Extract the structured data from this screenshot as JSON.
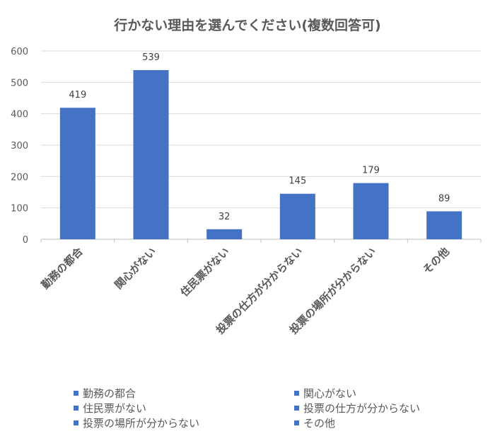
{
  "chart_data": {
    "type": "bar",
    "title": "行かない理由を選んでください(複数回答可)",
    "categories": [
      "勤務の都合",
      "関心がない",
      "住民票がない",
      "投票の仕方が分からない",
      "投票の場所が分からない",
      "その他"
    ],
    "values": [
      419,
      539,
      32,
      145,
      179,
      89
    ],
    "data_labels": [
      "419",
      "539",
      "32",
      "145",
      "179",
      "89"
    ],
    "ylim": [
      0,
      600
    ],
    "yticks": [
      "0",
      "100",
      "200",
      "300",
      "400",
      "500",
      "600"
    ],
    "xlabel": "",
    "ylabel": "",
    "grid": true,
    "legend_position": "bottom",
    "bar_color": "#4472C4"
  }
}
